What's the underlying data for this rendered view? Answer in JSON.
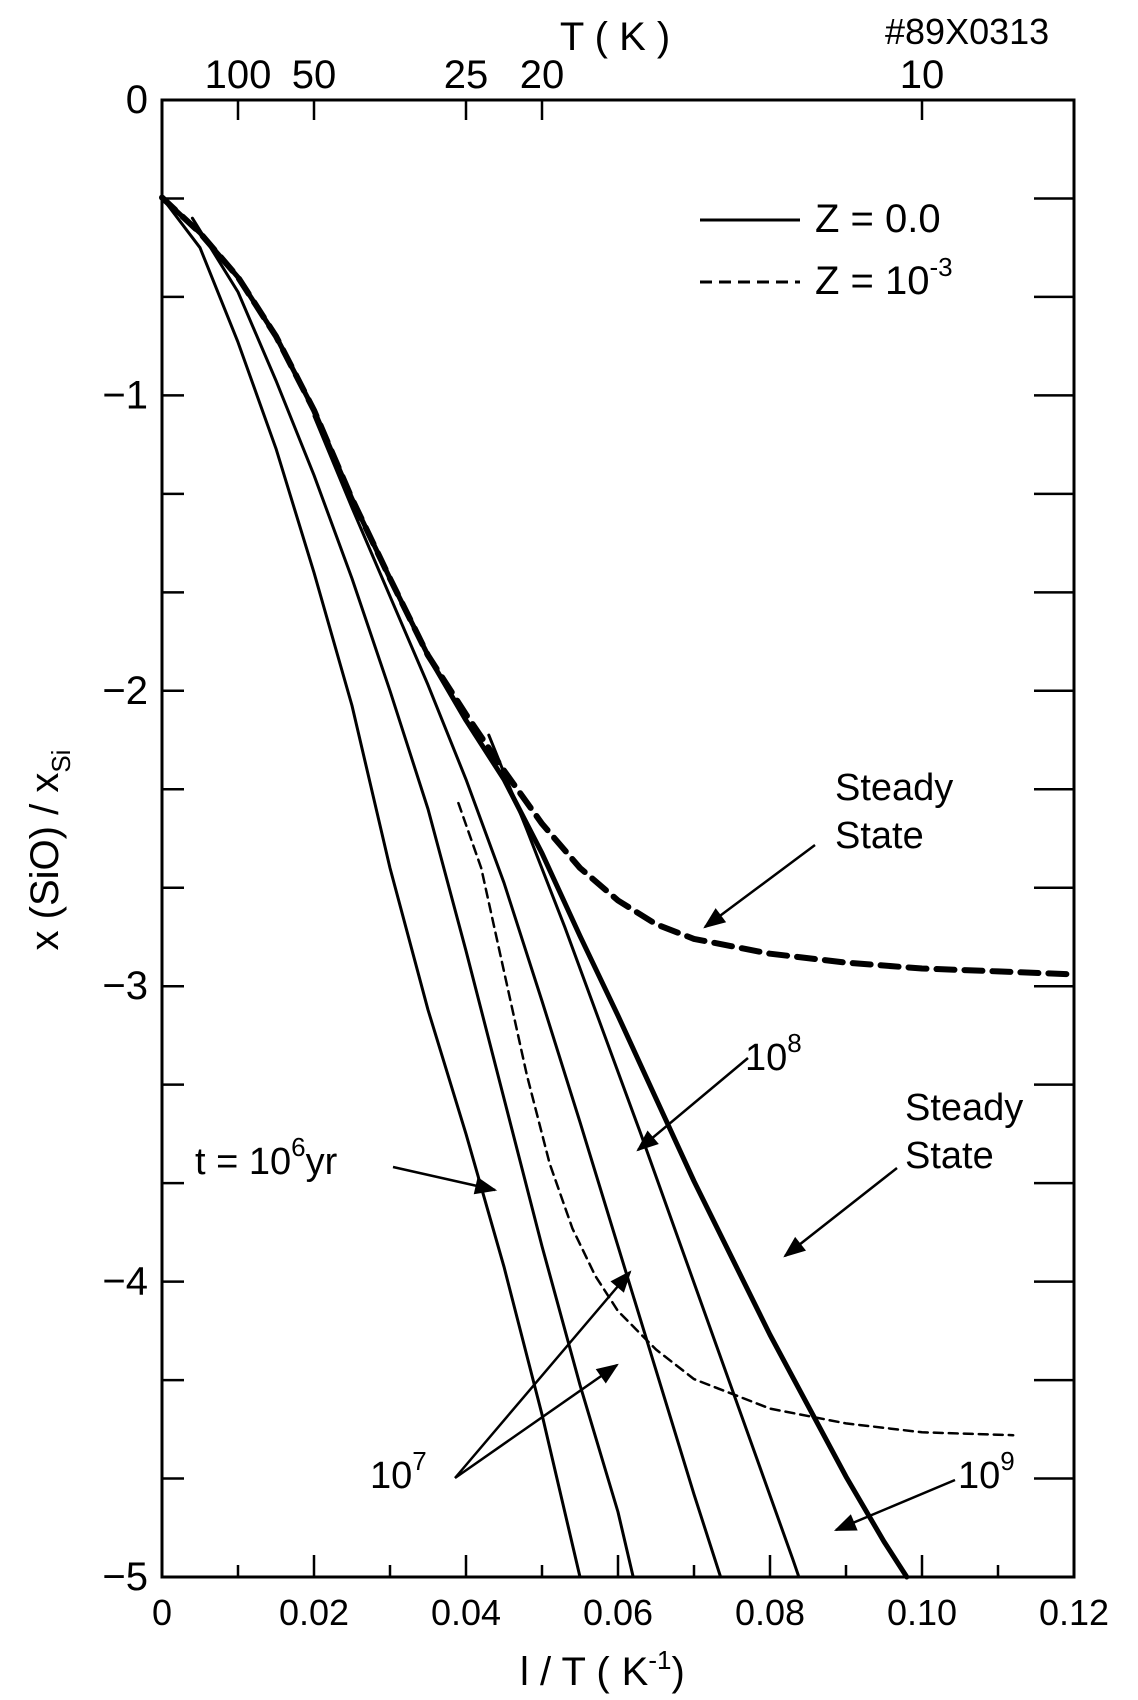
{
  "figure_id": "#89X0313",
  "chart_data": {
    "type": "line",
    "xlabel_main": "l / T (",
    "xlabel_unit": "K",
    "xlabel_exp": "-1",
    "xlabel_close": ")",
    "ylabel": "x (SiO) / x",
    "ylabel_sub": "Si",
    "top_axis_label": "T ( K )",
    "xlim": [
      0,
      0.12
    ],
    "ylim": [
      -5,
      0
    ],
    "x_ticks": [
      "0",
      "0.02",
      "0.04",
      "0.06",
      "0.08",
      "0.10",
      "0.12"
    ],
    "y_ticks": [
      "0",
      "−1",
      "−2",
      "−3",
      "−4",
      "−5"
    ],
    "top_ticks": [
      {
        "label": "100",
        "T": 100
      },
      {
        "label": "50",
        "T": 50
      },
      {
        "label": "25",
        "T": 25
      },
      {
        "label": "20",
        "T": 20
      },
      {
        "label": "10",
        "T": 10
      }
    ],
    "legend": [
      {
        "label": "Z = 0.0",
        "style": "solid"
      },
      {
        "label": "Z = 10",
        "exp": "-3",
        "style": "dashed"
      }
    ],
    "series": [
      {
        "key": "ss_dashed",
        "style": "thick-dashed",
        "points": [
          [
            0,
            -0.33
          ],
          [
            0.005,
            -0.45
          ],
          [
            0.01,
            -0.6
          ],
          [
            0.015,
            -0.8
          ],
          [
            0.02,
            -1.05
          ],
          [
            0.025,
            -1.35
          ],
          [
            0.03,
            -1.62
          ],
          [
            0.035,
            -1.88
          ],
          [
            0.04,
            -2.08
          ],
          [
            0.045,
            -2.27
          ],
          [
            0.05,
            -2.45
          ],
          [
            0.055,
            -2.6
          ],
          [
            0.06,
            -2.71
          ],
          [
            0.065,
            -2.79
          ],
          [
            0.07,
            -2.84
          ],
          [
            0.08,
            -2.89
          ],
          [
            0.09,
            -2.92
          ],
          [
            0.1,
            -2.94
          ],
          [
            0.11,
            -2.95
          ],
          [
            0.12,
            -2.96
          ]
        ]
      },
      {
        "key": "ss_solid",
        "style": "thick-solid",
        "points": [
          [
            0,
            -0.33
          ],
          [
            0.005,
            -0.45
          ],
          [
            0.01,
            -0.6
          ],
          [
            0.015,
            -0.8
          ],
          [
            0.02,
            -1.05
          ],
          [
            0.025,
            -1.35
          ],
          [
            0.03,
            -1.62
          ],
          [
            0.035,
            -1.88
          ],
          [
            0.04,
            -2.1
          ],
          [
            0.045,
            -2.3
          ],
          [
            0.05,
            -2.55
          ],
          [
            0.055,
            -2.83
          ],
          [
            0.06,
            -3.1
          ],
          [
            0.065,
            -3.38
          ],
          [
            0.07,
            -3.66
          ],
          [
            0.075,
            -3.92
          ],
          [
            0.08,
            -4.18
          ],
          [
            0.085,
            -4.42
          ],
          [
            0.09,
            -4.66
          ],
          [
            0.095,
            -4.88
          ],
          [
            0.098,
            -5.0
          ]
        ]
      },
      {
        "key": "t1e6",
        "style": "solid",
        "points": [
          [
            0,
            -0.33
          ],
          [
            0.005,
            -0.5
          ],
          [
            0.01,
            -0.82
          ],
          [
            0.015,
            -1.18
          ],
          [
            0.02,
            -1.6
          ],
          [
            0.025,
            -2.05
          ],
          [
            0.03,
            -2.6
          ],
          [
            0.035,
            -3.08
          ],
          [
            0.04,
            -3.5
          ],
          [
            0.045,
            -3.95
          ],
          [
            0.05,
            -4.45
          ],
          [
            0.055,
            -5.0
          ]
        ]
      },
      {
        "key": "t1e7",
        "style": "solid",
        "points": [
          [
            0.004,
            -0.4
          ],
          [
            0.01,
            -0.65
          ],
          [
            0.015,
            -0.95
          ],
          [
            0.02,
            -1.27
          ],
          [
            0.025,
            -1.62
          ],
          [
            0.03,
            -2.0
          ],
          [
            0.035,
            -2.4
          ],
          [
            0.04,
            -2.88
          ],
          [
            0.045,
            -3.38
          ],
          [
            0.05,
            -3.88
          ],
          [
            0.055,
            -4.35
          ],
          [
            0.06,
            -4.78
          ],
          [
            0.062,
            -5.0
          ]
        ]
      },
      {
        "key": "t1e8",
        "style": "solid",
        "points": [
          [
            0.02,
            -1.07
          ],
          [
            0.025,
            -1.38
          ],
          [
            0.03,
            -1.68
          ],
          [
            0.035,
            -1.98
          ],
          [
            0.04,
            -2.3
          ],
          [
            0.045,
            -2.65
          ],
          [
            0.05,
            -3.05
          ],
          [
            0.055,
            -3.46
          ],
          [
            0.06,
            -3.88
          ],
          [
            0.065,
            -4.3
          ],
          [
            0.07,
            -4.72
          ],
          [
            0.0735,
            -5.0
          ]
        ]
      },
      {
        "key": "t1e9",
        "style": "solid",
        "points": [
          [
            0.043,
            -2.15
          ],
          [
            0.048,
            -2.47
          ],
          [
            0.053,
            -2.8
          ],
          [
            0.058,
            -3.15
          ],
          [
            0.063,
            -3.5
          ],
          [
            0.068,
            -3.86
          ],
          [
            0.073,
            -4.22
          ],
          [
            0.078,
            -4.58
          ],
          [
            0.083,
            -4.94
          ],
          [
            0.0838,
            -5.0
          ]
        ]
      },
      {
        "key": "t1e7_dashed",
        "style": "thin-dashed",
        "points": [
          [
            0.039,
            -2.38
          ],
          [
            0.042,
            -2.6
          ],
          [
            0.045,
            -2.95
          ],
          [
            0.048,
            -3.3
          ],
          [
            0.051,
            -3.6
          ],
          [
            0.054,
            -3.82
          ],
          [
            0.057,
            -3.98
          ],
          [
            0.06,
            -4.1
          ],
          [
            0.065,
            -4.23
          ],
          [
            0.07,
            -4.33
          ],
          [
            0.08,
            -4.43
          ],
          [
            0.09,
            -4.48
          ],
          [
            0.1,
            -4.51
          ],
          [
            0.112,
            -4.52
          ]
        ]
      }
    ],
    "annotations": [
      {
        "text": "Steady",
        "text2": "State",
        "target": "dashed steady state"
      },
      {
        "text": "Steady",
        "text2": "State",
        "target": "solid steady state"
      },
      {
        "text": "t = 10",
        "exp": "6",
        "suffix": "yr"
      },
      {
        "text": "10",
        "exp": "7"
      },
      {
        "text": "10",
        "exp": "8"
      },
      {
        "text": "10",
        "exp": "9"
      }
    ]
  }
}
